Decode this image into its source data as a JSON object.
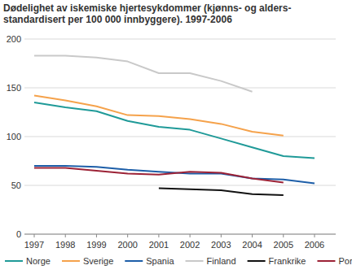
{
  "chart_data": {
    "type": "line",
    "title": "Dødelighet av iskemiske hjertesykdommer (kjønns- og alders-standardisert per 100 000 innbyggere). 1997-2006",
    "categories": [
      "1997",
      "1998",
      "1999",
      "2000",
      "2001",
      "2002",
      "2003",
      "2004",
      "2005",
      "2006"
    ],
    "series": [
      {
        "name": "Norge",
        "color": "#1f9a98",
        "values": [
          135,
          130,
          126,
          116,
          110,
          107,
          98,
          89,
          80,
          78
        ]
      },
      {
        "name": "Sverige",
        "color": "#f5a24b",
        "values": [
          142,
          137,
          131,
          122,
          121,
          118,
          113,
          105,
          101,
          null
        ]
      },
      {
        "name": "Spania",
        "color": "#1d5ea8",
        "values": [
          70,
          70,
          69,
          66,
          64,
          62,
          62,
          57,
          56,
          52
        ]
      },
      {
        "name": "Finland",
        "color": "#c9c9c9",
        "values": [
          183,
          183,
          181,
          177,
          165,
          165,
          157,
          146,
          null,
          null
        ]
      },
      {
        "name": "Frankrike",
        "color": "#111111",
        "values": [
          null,
          null,
          null,
          null,
          47,
          46,
          45,
          41,
          40,
          null
        ]
      },
      {
        "name": "Portugal",
        "color": "#9c2236",
        "values": [
          68,
          68,
          65,
          62,
          61,
          64,
          63,
          57,
          53,
          null
        ]
      }
    ],
    "ylim": [
      0,
      200
    ],
    "yticks": [
      0,
      50,
      100,
      150,
      200
    ],
    "grid": true,
    "legend": "bottom"
  }
}
